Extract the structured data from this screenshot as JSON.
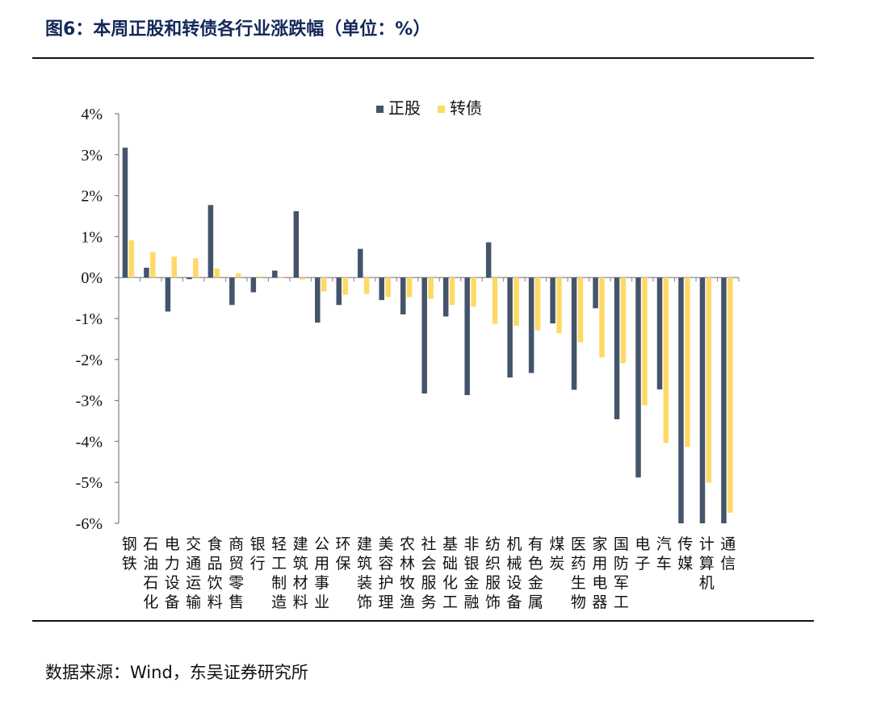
{
  "figure": {
    "title": "图6：本周正股和转债各行业涨跌幅（单位：%）",
    "source": "数据来源：Wind，东吴证券研究所"
  },
  "chart_data": {
    "type": "bar",
    "categories": [
      "钢铁",
      "石油石化",
      "电力设备",
      "交通运输",
      "食品饮料",
      "商贸零售",
      "银行",
      "轻工制造",
      "建筑材料",
      "公用事业",
      "环保",
      "建筑装饰",
      "美容护理",
      "农林牧渔",
      "社会服务",
      "基础化工",
      "非银金融",
      "纺织服饰",
      "机械设备",
      "有色金属",
      "煤炭",
      "医药生物",
      "家用电器",
      "国防军工",
      "电子",
      "汽车",
      "传媒",
      "计算机",
      "通信"
    ],
    "series": [
      {
        "name": "正股",
        "color": "#44546a",
        "values": [
          3.17,
          0.24,
          -0.83,
          -0.04,
          1.77,
          -0.67,
          -0.36,
          0.17,
          1.62,
          -1.1,
          -0.67,
          0.7,
          -0.55,
          -0.9,
          -2.83,
          -0.95,
          -2.87,
          0.86,
          -2.44,
          -2.33,
          -1.12,
          -2.74,
          -0.75,
          -3.46,
          -4.88,
          -2.73,
          -6.0,
          -6.0,
          -6.0
        ]
      },
      {
        "name": "转债",
        "color": "#ffd966",
        "values": [
          0.91,
          0.62,
          0.51,
          0.47,
          0.22,
          0.1,
          0.03,
          0.01,
          -0.05,
          -0.34,
          -0.42,
          -0.4,
          -0.48,
          -0.48,
          -0.52,
          -0.67,
          -0.71,
          -1.13,
          -1.18,
          -1.29,
          -1.36,
          -1.58,
          -1.95,
          -2.09,
          -3.12,
          -4.04,
          -4.13,
          -5.01,
          -5.74
        ]
      }
    ],
    "y_ticks": [
      "4%",
      "3%",
      "2%",
      "1%",
      "0%",
      "-1%",
      "-2%",
      "-3%",
      "-4%",
      "-5%",
      "-6%"
    ],
    "ylim": [
      -6,
      4
    ],
    "legend_position": "top-center",
    "grid": false
  }
}
